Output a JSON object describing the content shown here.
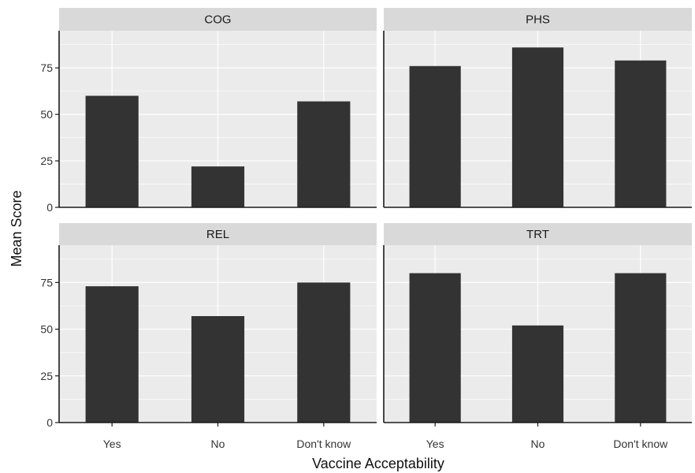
{
  "chart_data": {
    "type": "bar",
    "xlabel": "Vaccine Acceptability",
    "ylabel": "Mean Score",
    "categories": [
      "Yes",
      "No",
      "Don't know"
    ],
    "ylim": [
      0,
      95
    ],
    "yticks": [
      0,
      25,
      50,
      75
    ],
    "grid": true,
    "facets": [
      {
        "title": "COG",
        "values": [
          60,
          22,
          57
        ]
      },
      {
        "title": "PHS",
        "values": [
          76,
          86,
          79
        ]
      },
      {
        "title": "REL",
        "values": [
          73,
          57,
          75
        ]
      },
      {
        "title": "TRT",
        "values": [
          80,
          52,
          80
        ]
      }
    ]
  },
  "colors": {
    "panel_background": "#ebebeb",
    "strip_background": "#d9d9d9",
    "grid_line": "#ffffff",
    "bar_fill": "#333333",
    "axis_line": "#1a1a1a"
  }
}
